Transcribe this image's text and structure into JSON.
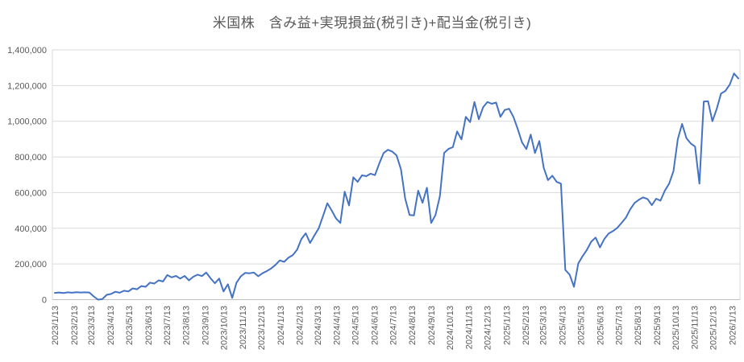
{
  "chart_data": {
    "type": "line",
    "title": "米国株　含み益+実現損益(税引き)+配当金(税引き)",
    "legend": "none",
    "grid": "horizontal",
    "line_color": "#4472C4",
    "gridline_color": "#D9D9D9",
    "axis_line_color": "#BFBFBF",
    "label_color": "#595959",
    "ylim": [
      0,
      1400000
    ],
    "y_tick_interval": 200000,
    "y_tick_labels": [
      "0",
      "200,000",
      "400,000",
      "600,000",
      "800,000",
      "1,000,000",
      "1,200,000",
      "1,400,000"
    ],
    "x_tick_labels": [
      "2023/1/13",
      "2023/2/13",
      "2023/3/13",
      "2023/4/13",
      "2023/5/13",
      "2023/6/13",
      "2023/7/13",
      "2023/8/13",
      "2023/9/13",
      "2023/10/13",
      "2023/11/13",
      "2023/12/13",
      "2024/1/13",
      "2024/2/13",
      "2024/3/13",
      "2024/4/13",
      "2024/5/13",
      "2024/6/13",
      "2024/7/13",
      "2024/8/13",
      "2024/9/13",
      "2024/10/13",
      "2024/11/13",
      "2024/12/13",
      "2025/1/13",
      "2025/2/13",
      "2025/3/13",
      "2025/4/13",
      "2025/5/13",
      "2025/6/13",
      "2025/7/13",
      "2025/8/13",
      "2025/9/13",
      "2025/10/13",
      "2025/11/13",
      "2025/12/13",
      "2026/1/13"
    ],
    "x_start_date": "2023/1/13",
    "point_interval_days": 7,
    "values": [
      38000,
      40000,
      37000,
      41000,
      39000,
      42000,
      40000,
      41000,
      40000,
      18000,
      0,
      3000,
      27000,
      32000,
      44000,
      39000,
      50000,
      46000,
      63000,
      58000,
      76000,
      72000,
      95000,
      90000,
      108000,
      102000,
      138000,
      125000,
      133000,
      118000,
      133000,
      108000,
      128000,
      140000,
      132000,
      152000,
      120000,
      92000,
      118000,
      46000,
      86000,
      10000,
      95000,
      131000,
      150000,
      148000,
      152000,
      131000,
      148000,
      160000,
      175000,
      195000,
      220000,
      212000,
      235000,
      250000,
      280000,
      340000,
      372000,
      318000,
      360000,
      400000,
      470000,
      540000,
      500000,
      455000,
      430000,
      605000,
      528000,
      686000,
      660000,
      697000,
      692000,
      706000,
      698000,
      763000,
      822000,
      840000,
      830000,
      808000,
      731000,
      566000,
      475000,
      472000,
      611000,
      543000,
      627000,
      430000,
      475000,
      580000,
      822000,
      845000,
      855000,
      943000,
      898000,
      1025000,
      995000,
      1108000,
      1011000,
      1078000,
      1108000,
      1098000,
      1105000,
      1025000,
      1063000,
      1070000,
      1025000,
      957000,
      882000,
      844000,
      925000,
      822000,
      889000,
      740000,
      670000,
      695000,
      660000,
      650000,
      167000,
      140000,
      72000,
      203000,
      244000,
      280000,
      325000,
      348000,
      293000,
      339000,
      370000,
      384000,
      402000,
      430000,
      460000,
      506000,
      542000,
      560000,
      573000,
      564000,
      530000,
      566000,
      555000,
      611000,
      650000,
      720000,
      900000,
      985000,
      905000,
      875000,
      858000,
      650000,
      1110000,
      1112000,
      1000000,
      1070000,
      1155000,
      1170000,
      1205000,
      1268000,
      1240000
    ]
  }
}
